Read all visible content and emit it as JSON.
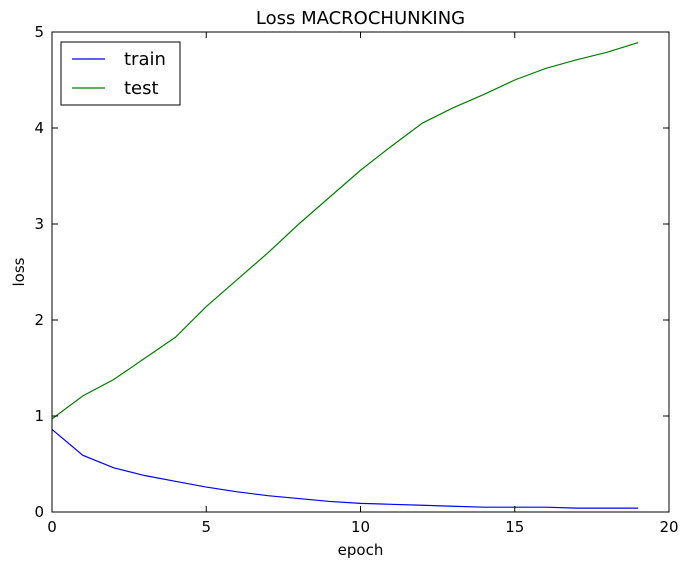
{
  "chart_data": {
    "type": "line",
    "title": "Loss MACROCHUNKING",
    "xlabel": "epoch",
    "ylabel": "loss",
    "xlim": [
      0,
      20
    ],
    "ylim": [
      0,
      5
    ],
    "xticks": [
      0,
      5,
      10,
      15,
      20
    ],
    "yticks": [
      0,
      1,
      2,
      3,
      4,
      5
    ],
    "grid": false,
    "legend_position": "top-left",
    "x": [
      0,
      1,
      2,
      3,
      4,
      5,
      6,
      7,
      8,
      9,
      10,
      11,
      12,
      13,
      14,
      15,
      16,
      17,
      18,
      19
    ],
    "series": [
      {
        "name": "train",
        "color": "#0000ff",
        "values": [
          0.86,
          0.59,
          0.46,
          0.38,
          0.32,
          0.26,
          0.21,
          0.17,
          0.14,
          0.11,
          0.09,
          0.08,
          0.07,
          0.06,
          0.05,
          0.05,
          0.05,
          0.04,
          0.04,
          0.04
        ]
      },
      {
        "name": "test",
        "color": "#008000",
        "values": [
          0.97,
          1.21,
          1.38,
          1.6,
          1.82,
          2.14,
          2.42,
          2.7,
          3.0,
          3.28,
          3.56,
          3.81,
          4.05,
          4.21,
          4.35,
          4.5,
          4.62,
          4.71,
          4.79,
          4.89
        ]
      }
    ]
  }
}
